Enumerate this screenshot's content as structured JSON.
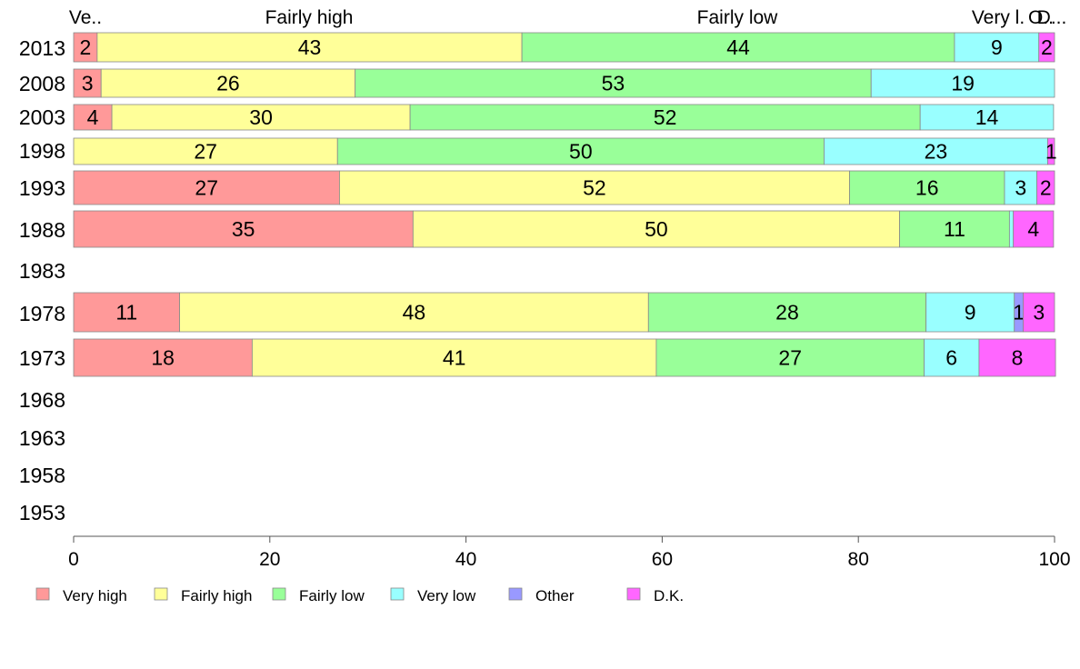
{
  "chart_data": {
    "type": "bar",
    "orientation": "horizontal",
    "stacked": true,
    "categories": [
      "2013",
      "2008",
      "2003",
      "1998",
      "1993",
      "1988",
      "1983",
      "1978",
      "1973",
      "1968",
      "1963",
      "1958",
      "1953"
    ],
    "series": [
      {
        "name": "Very high",
        "color": "#ff9999",
        "values": [
          2.4,
          2.8,
          3.9,
          0,
          27.1,
          34.6,
          null,
          10.8,
          18.2,
          null,
          null,
          null,
          null
        ],
        "labels": [
          "2",
          "3",
          "4",
          "",
          "27",
          "35",
          "",
          "11",
          "18",
          "",
          "",
          "",
          ""
        ]
      },
      {
        "name": "Fairly high",
        "color": "#ffff99",
        "values": [
          43.3,
          25.9,
          30.4,
          26.9,
          52.0,
          49.6,
          null,
          47.8,
          41.2,
          null,
          null,
          null,
          null
        ],
        "labels": [
          "43",
          "26",
          "30",
          "27",
          "52",
          "50",
          "",
          "48",
          "41",
          "",
          "",
          "",
          ""
        ]
      },
      {
        "name": "Fairly low",
        "color": "#99ff99",
        "values": [
          44.1,
          52.6,
          52.0,
          49.6,
          15.8,
          11.2,
          null,
          28.3,
          27.3,
          null,
          null,
          null,
          null
        ],
        "labels": [
          "44",
          "53",
          "52",
          "50",
          "16",
          "11",
          "",
          "28",
          "27",
          "",
          "",
          "",
          ""
        ]
      },
      {
        "name": "Very low",
        "color": "#99ffff",
        "values": [
          8.6,
          18.7,
          13.6,
          22.8,
          3.3,
          0.4,
          null,
          9.0,
          5.6,
          null,
          null,
          null,
          null
        ],
        "labels": [
          "9",
          "19",
          "14",
          "23",
          "3",
          "",
          "",
          "9",
          "6",
          "",
          "",
          "",
          ""
        ]
      },
      {
        "name": "Other",
        "color": "#9999ff",
        "values": [
          0,
          0,
          0,
          0,
          0,
          0,
          null,
          0.9,
          0,
          null,
          null,
          null,
          null
        ],
        "labels": [
          "",
          "",
          "",
          "",
          "",
          "",
          "",
          "1",
          "",
          "",
          "",
          "",
          ""
        ]
      },
      {
        "name": "D.K.",
        "color": "#ff66ff",
        "values": [
          1.6,
          0,
          0,
          0.7,
          1.8,
          4.1,
          null,
          3.2,
          7.8,
          null,
          null,
          null,
          null
        ],
        "labels": [
          "2",
          "",
          "",
          "1",
          "2",
          "4",
          "",
          "3",
          "8",
          "",
          "",
          "",
          ""
        ]
      }
    ],
    "top_labels": [
      "Ve..",
      "Fairly high",
      "Fairly low",
      "Very l.",
      "O..",
      "D..."
    ],
    "xlim": [
      0,
      100
    ],
    "xticks": [
      0,
      20,
      40,
      60,
      80,
      100
    ],
    "title": "",
    "xlabel": "",
    "ylabel": "",
    "legend": "bottom",
    "grid": false
  }
}
